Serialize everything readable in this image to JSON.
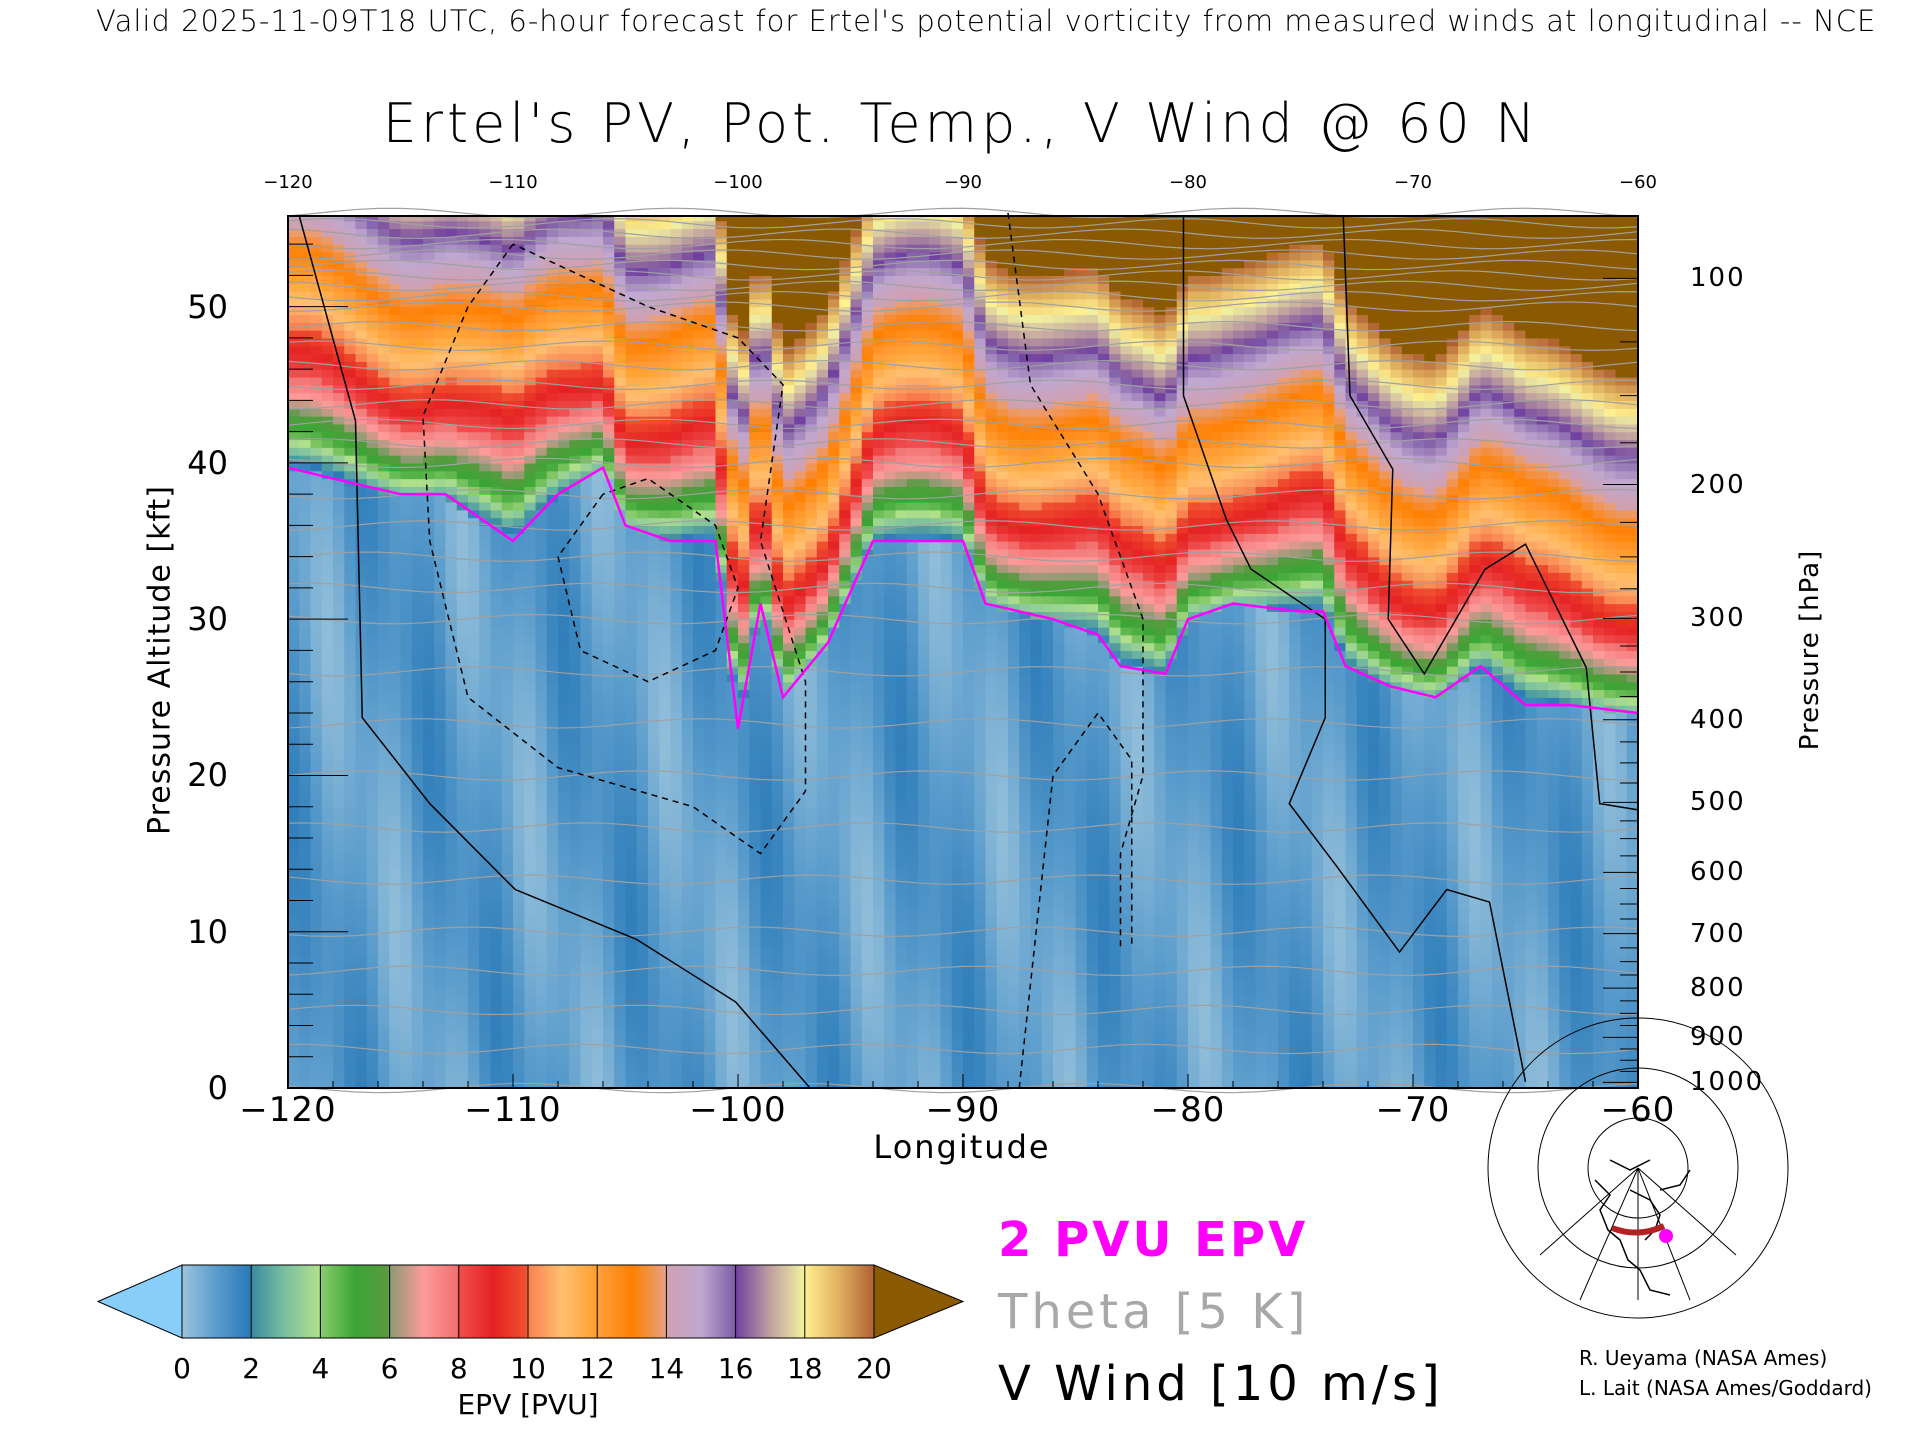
{
  "header": {
    "top_title": "Valid 2025-11-09T18 UTC, 6-hour forecast for Ertel's potential vorticity from measured winds at longitudinal -- NCE",
    "main_title": "Ertel's PV, Pot. Temp., V Wind @ 60 N"
  },
  "legend": {
    "pvu_line": "2 PVU EPV",
    "theta": "Theta [5 K]",
    "vwind": "V Wind [10 m/s]"
  },
  "credits": [
    "R. Ueyama (NASA Ames)",
    "L. Lait (NASA Ames/Goddard)"
  ],
  "colors": {
    "tropopause": "#ff00ff",
    "theta": "#a0a0a0",
    "vwind": "#000000",
    "under": "#87cefa",
    "over": "#8b5a00",
    "map_track": "#b22222",
    "map_point": "#ff00ff"
  },
  "chart_data": {
    "type": "heatmap",
    "title": "Ertel's PV, Pot. Temp., V Wind @ 60 N",
    "xlabel": "Longitude",
    "ylabel": "Pressure Altitude [kft]",
    "y2label": "Pressure [hPa]",
    "xlim": [
      -120,
      -60
    ],
    "ylim": [
      0,
      55.8
    ],
    "x_ticks": [
      "-120",
      "-110",
      "-100",
      "-90",
      "-80",
      "-70",
      "-60"
    ],
    "x_tick_values": [
      -120,
      -110,
      -100,
      -90,
      -80,
      -70,
      -60
    ],
    "y_ticks": [
      "0",
      "10",
      "20",
      "30",
      "40",
      "50"
    ],
    "y_tick_values": [
      0,
      10,
      20,
      30,
      40,
      50
    ],
    "y2_ticks": [
      "100",
      "200",
      "300",
      "400",
      "500",
      "600",
      "700",
      "800",
      "900",
      "1000"
    ],
    "y2_tick_values": [
      100,
      200,
      300,
      400,
      500,
      600,
      700,
      800,
      900,
      1000
    ],
    "colorbar": {
      "label": "EPV [PVU]",
      "ticks": [
        "0",
        "2",
        "4",
        "6",
        "8",
        "10",
        "12",
        "14",
        "16",
        "18",
        "20"
      ],
      "range": [
        0,
        20
      ],
      "stops": [
        [
          0,
          "#9cc4dc"
        ],
        [
          1,
          "#5a9ccc"
        ],
        [
          1.95,
          "#2a7ab8"
        ],
        [
          2,
          "#3a8aa0"
        ],
        [
          3,
          "#7cc0a0"
        ],
        [
          3.95,
          "#b0e08a"
        ],
        [
          4,
          "#8ccc6c"
        ],
        [
          5,
          "#3aa535"
        ],
        [
          5.95,
          "#5a9a40"
        ],
        [
          6,
          "#8a9a70"
        ],
        [
          7,
          "#ff9a9a"
        ],
        [
          7.95,
          "#f07070"
        ],
        [
          8,
          "#f05050"
        ],
        [
          9,
          "#e52222"
        ],
        [
          9.95,
          "#f05030"
        ],
        [
          10,
          "#f88050"
        ],
        [
          11,
          "#ffc070"
        ],
        [
          11.95,
          "#ffa030"
        ],
        [
          12,
          "#ffa040"
        ],
        [
          13,
          "#ff8000"
        ],
        [
          13.95,
          "#e8a080"
        ],
        [
          14,
          "#d0a0b0"
        ],
        [
          15,
          "#c0a8d0"
        ],
        [
          15.95,
          "#8060a8"
        ],
        [
          16,
          "#7040a0"
        ],
        [
          17,
          "#c0a0a0"
        ],
        [
          17.95,
          "#f0f0a0"
        ],
        [
          18,
          "#fff090"
        ],
        [
          19,
          "#e0b060"
        ],
        [
          20,
          "#b06030"
        ]
      ]
    },
    "tropopause_2pvu": {
      "lon": [
        -120,
        -118,
        -115,
        -113,
        -110,
        -108,
        -106,
        -105,
        -103,
        -101,
        -100,
        -99,
        -98,
        -96,
        -94,
        -92,
        -90,
        -89,
        -86,
        -84,
        -83,
        -81,
        -80,
        -78,
        -75,
        -74,
        -73,
        -71,
        -69,
        -67,
        -65,
        -63,
        -60
      ],
      "alt_kft": [
        39.7,
        39,
        38,
        38,
        35,
        38,
        39.7,
        36,
        35,
        35,
        23,
        31,
        25,
        28.5,
        35,
        35,
        35,
        31,
        30,
        29,
        27,
        26.5,
        30,
        31,
        30.5,
        30.5,
        27,
        25.7,
        25,
        27,
        24.5,
        24.5,
        24
      ]
    },
    "epv_above_tropopause": {
      "height_kft": [
        0,
        2,
        5,
        8,
        12,
        16,
        20,
        24
      ],
      "epv_pvu": [
        2,
        5,
        8,
        10,
        12.5,
        15,
        18,
        21
      ]
    },
    "epv_troposphere_mean": 1.0,
    "theta_profile": {
      "alt_kft": [
        0,
        10,
        20,
        30,
        40,
        50,
        56
      ],
      "theta_K": [
        270,
        290,
        305,
        320,
        345,
        385,
        430
      ]
    },
    "theta_interval_K": 5,
    "vwind_contours": [
      {
        "level": 0,
        "style": "solid",
        "lon": [
          -119.5,
          -117,
          -116.7,
          -113.7,
          -109.9,
          -104.5,
          -100.1,
          -96.8
        ],
        "alt": [
          55.8,
          42.7,
          23.7,
          18.2,
          12.7,
          9.5,
          5.5,
          0
        ]
      },
      {
        "level": 0,
        "style": "solid",
        "lon": [
          -80.2,
          -80.2,
          -78.3,
          -77.2,
          -73.9,
          -73.9,
          -75.5,
          -73.4,
          -70.6,
          -68.5,
          -66.6,
          -65
        ],
        "alt": [
          55.8,
          44.3,
          36.4,
          33.2,
          30,
          23.7,
          18.2,
          14.2,
          8.7,
          12.7,
          11.9,
          0.4
        ]
      },
      {
        "level": 10,
        "style": "solid",
        "lon": [
          -73.1,
          -72.8,
          -70.9,
          -71.1,
          -69.5,
          -66.8,
          -65,
          -62.3,
          -61.7,
          -60
        ],
        "alt": [
          55.8,
          44.3,
          39.6,
          30,
          26.5,
          33.2,
          34.8,
          26.9,
          18.2,
          17.8
        ]
      },
      {
        "level": -10,
        "style": "dashed",
        "lon": [
          -110,
          -112,
          -114,
          -113.7,
          -112,
          -108,
          -102,
          -99,
          -97,
          -97,
          -99,
          -98,
          -100,
          -104,
          -110
        ],
        "alt": [
          54,
          50,
          43,
          35,
          25,
          20.5,
          18,
          15,
          19,
          26,
          35,
          45,
          48,
          50,
          54
        ]
      },
      {
        "level": -30,
        "style": "dashed",
        "lon": [
          -106,
          -108,
          -107,
          -104,
          -101,
          -100,
          -101,
          -104,
          -106
        ],
        "alt": [
          38,
          34,
          28,
          26,
          28,
          32,
          36,
          39,
          38
        ]
      },
      {
        "level": -10,
        "style": "dashed",
        "lon": [
          -88,
          -87,
          -84,
          -82,
          -82,
          -83,
          -83
        ],
        "alt": [
          56,
          45,
          38,
          30,
          20,
          15,
          9
        ]
      },
      {
        "level": -10,
        "style": "dashed",
        "lon": [
          -87.5,
          -86,
          -84,
          -82.5,
          -82.5
        ],
        "alt": [
          0,
          20,
          24,
          21,
          9
        ]
      }
    ]
  }
}
